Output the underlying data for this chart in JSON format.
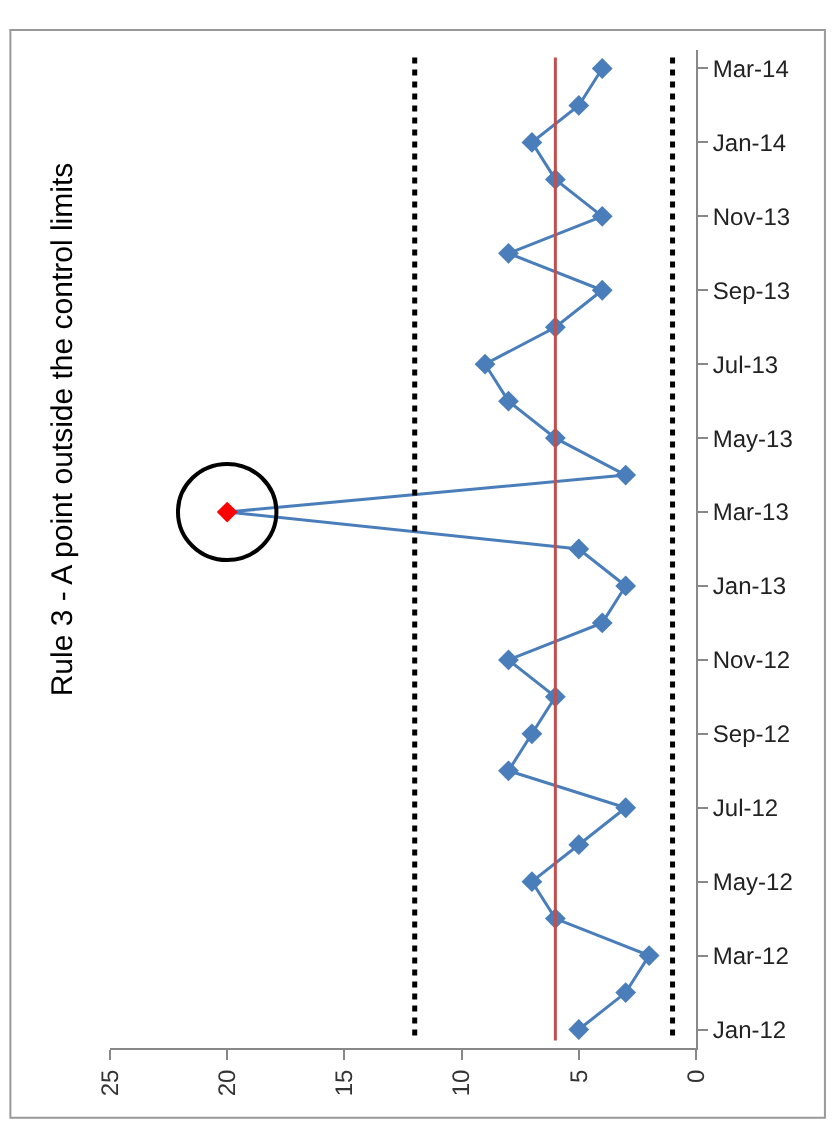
{
  "chart_data": {
    "type": "line",
    "title": "Rule 3 - A point outside the control limits",
    "orientation": "horizontal",
    "categories": [
      "Mar-14",
      null,
      "Jan-14",
      null,
      "Nov-13",
      null,
      "Sep-13",
      null,
      "Jul-13",
      null,
      "May-13",
      null,
      "Mar-13",
      null,
      "Jan-13",
      null,
      "Nov-12",
      null,
      "Sep-12",
      null,
      "Jul-12",
      null,
      "May-12",
      null,
      "Mar-12",
      null,
      "Jan-12"
    ],
    "series": [
      {
        "color": "#4a7ebb",
        "values": [
          4,
          5,
          7,
          6,
          4,
          8,
          4,
          6,
          9,
          8,
          6,
          3,
          20,
          5,
          3,
          4,
          8,
          6,
          7,
          8,
          3,
          5,
          7,
          6,
          2,
          3,
          5
        ],
        "colors": [
          "#4a7ebb",
          "#4a7ebb",
          "#4a7ebb",
          "#4a7ebb",
          "#4a7ebb",
          "#4a7ebb",
          "#4a7ebb",
          "#4a7ebb",
          "#4a7ebb",
          "#4a7ebb",
          "#4a7ebb",
          "#4a7ebb",
          "#ff0000",
          "#4a7ebb",
          "#4a7ebb",
          "#4a7ebb",
          "#4a7ebb",
          "#4a7ebb",
          "#4a7ebb",
          "#4a7ebb",
          "#4a7ebb",
          "#4a7ebb",
          "#4a7ebb",
          "#4a7ebb",
          "#4a7ebb",
          "#4a7ebb",
          "#4a7ebb"
        ]
      }
    ],
    "xlim": [
      25,
      0
    ],
    "xticks": [
      0,
      5,
      10,
      15,
      20,
      25
    ],
    "ref_lines": [
      {
        "axis": "x",
        "value": 6,
        "color": "#c0504d",
        "line_style": "solid"
      },
      {
        "axis": "x",
        "value": 12,
        "color": "#000000",
        "line_style": "dotted"
      },
      {
        "axis": "x",
        "value": 1,
        "color": "#000000",
        "line_style": "dotted"
      }
    ],
    "marker": "diamond",
    "line_style": "solid"
  }
}
